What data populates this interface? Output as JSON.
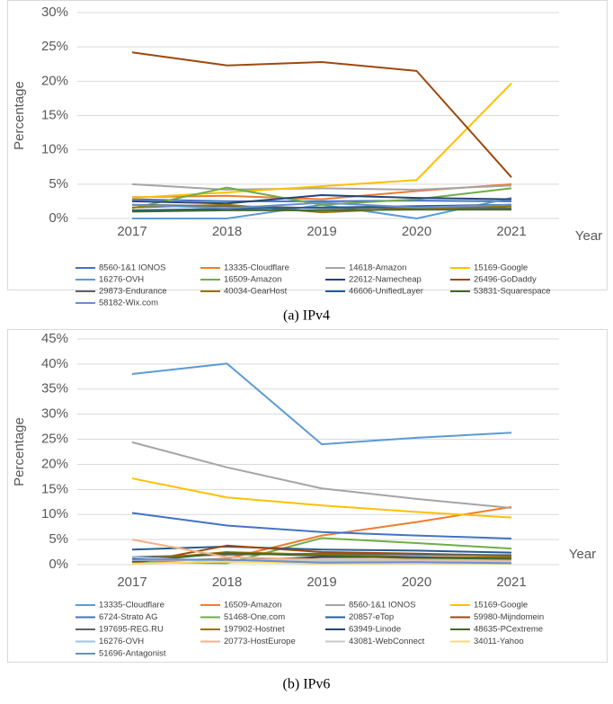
{
  "chart_data": [
    {
      "type": "line",
      "caption": "(a) IPv4",
      "xlabel": "Year",
      "ylabel": "Percentage",
      "categories": [
        "2017",
        "2018",
        "2019",
        "2020",
        "2021"
      ],
      "ylim": [
        0,
        30
      ],
      "yticks": [
        {
          "value": 0,
          "label": "0%"
        },
        {
          "value": 5,
          "label": "5%"
        },
        {
          "value": 10,
          "label": "10%"
        },
        {
          "value": 15,
          "label": "15%"
        },
        {
          "value": 20,
          "label": "20%"
        },
        {
          "value": 25,
          "label": "25%"
        },
        {
          "value": 30,
          "label": "30%"
        }
      ],
      "grid": true,
      "legend": "bottom",
      "series": [
        {
          "name": "8560-1&1 IONOS",
          "color": "#4472C4",
          "values": [
            2.8,
            2.5,
            2.5,
            2.6,
            2.5
          ]
        },
        {
          "name": "13335-Cloudflare",
          "color": "#ED7D31",
          "values": [
            3.1,
            3.3,
            2.8,
            4.0,
            5.0
          ]
        },
        {
          "name": "14618-Amazon",
          "color": "#A5A5A5",
          "values": [
            5.0,
            4.2,
            4.4,
            4.2,
            4.8
          ]
        },
        {
          "name": "15169-Google",
          "color": "#FFC000",
          "values": [
            3.0,
            3.8,
            4.7,
            5.6,
            19.7
          ]
        },
        {
          "name": "16276-OVH",
          "color": "#5B9BD5",
          "values": [
            0,
            0,
            2.0,
            0,
            3.0
          ]
        },
        {
          "name": "16509-Amazon",
          "color": "#70AD47",
          "values": [
            1.5,
            4.5,
            2.0,
            2.8,
            4.4
          ]
        },
        {
          "name": "22612-Namecheap",
          "color": "#264478",
          "values": [
            2.5,
            2.2,
            3.4,
            3.0,
            2.8
          ]
        },
        {
          "name": "26496-GoDaddy",
          "color": "#9E480E",
          "values": [
            24.2,
            22.3,
            22.8,
            21.5,
            6.0
          ]
        },
        {
          "name": "29873-Endurance",
          "color": "#636363",
          "values": [
            2.0,
            1.8,
            1.5,
            1.6,
            1.5
          ]
        },
        {
          "name": "40034-GearHost",
          "color": "#997300",
          "values": [
            1.6,
            2.0,
            0.9,
            1.5,
            1.8
          ]
        },
        {
          "name": "46606-UnifiedLayer",
          "color": "#255E91",
          "values": [
            1.2,
            1.4,
            1.6,
            1.8,
            2.0
          ]
        },
        {
          "name": "53831-Squarespace",
          "color": "#43682B",
          "values": [
            1.0,
            1.2,
            1.2,
            1.3,
            1.3
          ]
        },
        {
          "name": "58182-Wix.com",
          "color": "#698ED0",
          "values": [
            2.0,
            1.5,
            2.3,
            1.6,
            2.0
          ]
        }
      ]
    },
    {
      "type": "line",
      "caption": "(b) IPv6",
      "xlabel": "Year",
      "ylabel": "Percentage",
      "categories": [
        "2017",
        "2018",
        "2019",
        "2020",
        "2021"
      ],
      "ylim": [
        0,
        45
      ],
      "yticks": [
        {
          "value": 0,
          "label": "0%"
        },
        {
          "value": 5,
          "label": "5%"
        },
        {
          "value": 10,
          "label": "10%"
        },
        {
          "value": 15,
          "label": "15%"
        },
        {
          "value": 20,
          "label": "20%"
        },
        {
          "value": 25,
          "label": "25%"
        },
        {
          "value": 30,
          "label": "30%"
        },
        {
          "value": 35,
          "label": "35%"
        },
        {
          "value": 40,
          "label": "40%"
        },
        {
          "value": 45,
          "label": "45%"
        }
      ],
      "grid": true,
      "legend": "bottom",
      "series": [
        {
          "name": "13335-Cloudflare",
          "color": "#5B9BD5",
          "values": [
            38.0,
            40.1,
            24.0,
            25.3,
            26.3
          ]
        },
        {
          "name": "16509-Amazon",
          "color": "#ED7D31",
          "values": [
            0.5,
            1.2,
            5.8,
            8.5,
            11.5
          ]
        },
        {
          "name": "8560-1&1 IONOS",
          "color": "#A5A5A5",
          "values": [
            24.4,
            19.4,
            15.2,
            13.1,
            11.3
          ]
        },
        {
          "name": "15169-Google",
          "color": "#FFC000",
          "values": [
            17.2,
            13.4,
            11.8,
            10.5,
            9.4
          ]
        },
        {
          "name": "6724-Strato AG",
          "color": "#4472C4",
          "values": [
            10.3,
            7.8,
            6.5,
            5.8,
            5.2
          ]
        },
        {
          "name": "51468-One.com",
          "color": "#70AD47",
          "values": [
            0.5,
            0.3,
            5.3,
            4.3,
            3.2
          ]
        },
        {
          "name": "20857-eTop",
          "color": "#255E91",
          "values": [
            3.0,
            3.6,
            3.0,
            2.8,
            2.4
          ]
        },
        {
          "name": "59980-Mijndomein",
          "color": "#9E480E",
          "values": [
            0.2,
            3.8,
            2.5,
            2.2,
            1.8
          ]
        },
        {
          "name": "197695-REG.RU",
          "color": "#636363",
          "values": [
            1.5,
            2.0,
            2.2,
            2.0,
            1.9
          ]
        },
        {
          "name": "197902-Hostnet",
          "color": "#997300",
          "values": [
            0.8,
            2.5,
            2.0,
            1.5,
            1.5
          ]
        },
        {
          "name": "63949-Linode",
          "color": "#264478",
          "values": [
            1.2,
            0.8,
            1.5,
            1.5,
            1.0
          ]
        },
        {
          "name": "48635-PCextreme",
          "color": "#43682B",
          "values": [
            0.6,
            2.3,
            1.8,
            1.3,
            1.2
          ]
        },
        {
          "name": "16276-OVH",
          "color": "#9DC3E6",
          "values": [
            1.5,
            0.5,
            0.5,
            0.6,
            0.5
          ]
        },
        {
          "name": "20773-HostEurope",
          "color": "#F4B183",
          "values": [
            5.0,
            1.5,
            1.0,
            1.0,
            0.8
          ]
        },
        {
          "name": "43081-WebConnect",
          "color": "#C9C9C9",
          "values": [
            0.9,
            1.0,
            0.8,
            0.7,
            0.6
          ]
        },
        {
          "name": "34011-Yahoo",
          "color": "#FFD966",
          "values": [
            0.2,
            0.6,
            0.2,
            0.3,
            0.2
          ]
        },
        {
          "name": "51696-Antagonist",
          "color": "#698ED0",
          "values": [
            1.0,
            1.0,
            0.4,
            0.5,
            0.3
          ]
        }
      ]
    }
  ]
}
